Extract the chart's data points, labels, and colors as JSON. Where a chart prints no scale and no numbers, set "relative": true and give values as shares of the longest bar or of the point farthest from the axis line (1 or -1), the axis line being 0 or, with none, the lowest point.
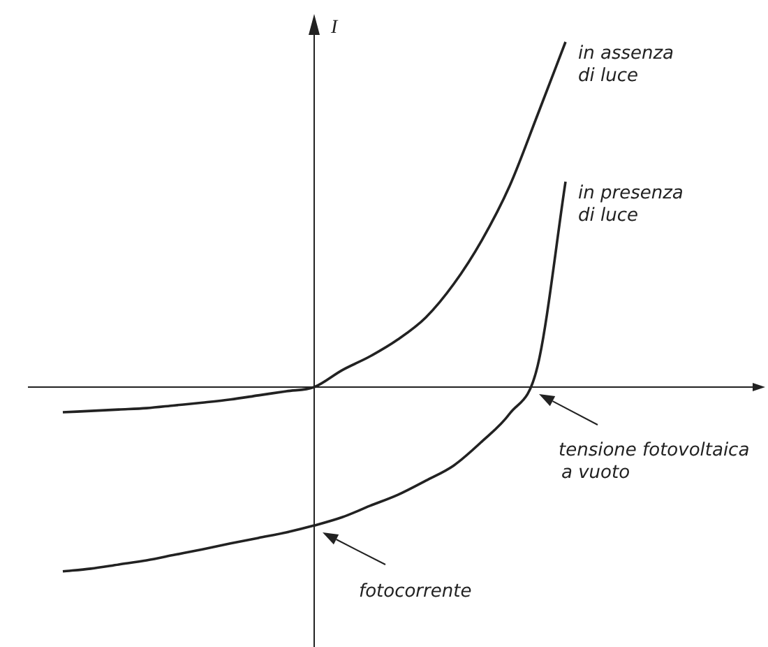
{
  "chart_data": {
    "type": "line",
    "relative": true,
    "ylabel": "I",
    "legend": false,
    "marker": "none",
    "line_style": "solid",
    "categories": [
      null,
      null,
      null,
      null,
      null,
      null,
      null,
      null,
      null,
      null,
      null,
      null,
      null,
      null,
      null,
      null,
      null,
      null,
      null,
      null,
      null,
      null,
      null,
      null,
      null,
      null
    ],
    "series": [
      {
        "name": "in assenza di luce",
        "color": "#222222",
        "values": [
          -0.073,
          -0.069,
          -0.065,
          -0.061,
          -0.053,
          -0.045,
          -0.036,
          -0.024,
          -0.012,
          0,
          0.049,
          0.089,
          0.138,
          0.202,
          0.299,
          0.425,
          0.583,
          0.789,
          1,
          null,
          null,
          null,
          null,
          null,
          null,
          null
        ]
      },
      {
        "name": "in presenza di luce",
        "color": "#222222",
        "values": [
          -0.534,
          -0.526,
          -0.514,
          -0.502,
          -0.486,
          -0.47,
          -0.453,
          -0.437,
          -0.421,
          -0.401,
          -0.377,
          -0.344,
          -0.312,
          -0.271,
          -0.227,
          -0.158,
          -0.077,
          0.061,
          0.595,
          null,
          null,
          null,
          null,
          null,
          null,
          null
        ]
      }
    ],
    "annotations": [
      "tensione fotovoltaica a vuoto",
      "fotocorrente"
    ]
  }
}
